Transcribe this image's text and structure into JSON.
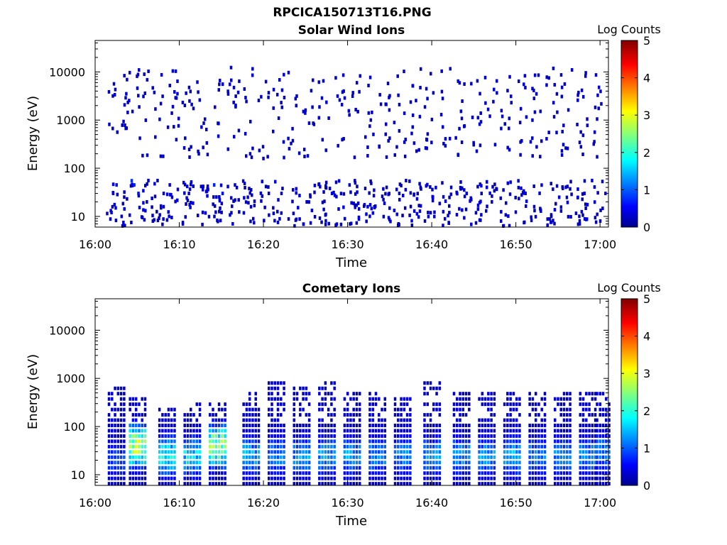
{
  "figure_title": "RPCICA150713T16.PNG",
  "colors": {
    "colormap": "jet",
    "colormap_stops": [
      "#00008f",
      "#0000ff",
      "#00ffff",
      "#ffff00",
      "#ff0000",
      "#800000"
    ]
  },
  "chart_data": [
    {
      "type": "heatmap",
      "title": "Solar Wind Ions",
      "xlabel": "Time",
      "ylabel": "Energy (eV)",
      "y_scale": "log",
      "ylim": [
        6,
        45000
      ],
      "yticks": [
        10,
        100,
        1000,
        10000
      ],
      "ytick_labels": [
        "10",
        "100",
        "1000",
        "10000"
      ],
      "xlim": [
        "16:00",
        "17:01"
      ],
      "xticks": [
        "16:00",
        "16:10",
        "16:20",
        "16:30",
        "16:40",
        "16:50",
        "17:00"
      ],
      "colorbar": {
        "label": "Log Counts",
        "min": 0,
        "max": 5,
        "ticks": [
          0,
          1,
          2,
          3,
          4,
          5
        ]
      },
      "grid": false,
      "sweep_minutes": [
        16.02,
        16.05,
        16.08,
        16.11,
        16.14,
        16.17,
        16.2,
        16.23,
        16.26,
        16.29,
        16.32,
        16.35,
        16.38,
        16.41,
        16.44,
        16.47,
        16.5,
        16.53,
        16.56,
        16.59,
        16.62,
        16.65,
        16.68,
        16.71,
        16.74,
        16.77,
        16.8,
        16.83,
        16.86,
        16.89,
        16.92,
        16.95,
        16.98
      ],
      "sweep_minutes_note": "",
      "typical_log_counts": {
        "low_energy_band_10_60eV": 0.3,
        "sparse_high_energy_1_to_15keV": 0.2
      },
      "series": [
        {
          "name": "",
          "points": [
            [
              2.0,
              30,
              0.4
            ],
            [
              2.3,
              15,
              0.5
            ],
            [
              2.4,
              45,
              0.6
            ],
            [
              3.0,
              10,
              0.4
            ],
            [
              4.2,
              55,
              0.8
            ],
            [
              4.5,
              45,
              0.7
            ],
            [
              5.0,
              30,
              0.6
            ],
            [
              6.0,
              20,
              0.4
            ],
            [
              8.0,
              30,
              0.5
            ],
            [
              9.0,
              25,
              0.4
            ],
            [
              11.0,
              30,
              0.4
            ],
            [
              14.0,
              45,
              0.7
            ],
            [
              15.0,
              30,
              0.6
            ],
            [
              18.0,
              25,
              0.4
            ],
            [
              22.0,
              30,
              0.4
            ],
            [
              25.0,
              20,
              0.3
            ],
            [
              28.0,
              30,
              0.4
            ],
            [
              33.0,
              35,
              0.4
            ],
            [
              36.0,
              30,
              0.4
            ],
            [
              40.0,
              25,
              0.5
            ],
            [
              44.0,
              30,
              0.4
            ],
            [
              47.0,
              20,
              0.4
            ],
            [
              51.0,
              30,
              0.4
            ],
            [
              55.0,
              25,
              0.4
            ],
            [
              58.0,
              30,
              0.4
            ],
            [
              60.5,
              30,
              0.5
            ]
          ]
        }
      ]
    },
    {
      "type": "heatmap",
      "title": "Cometary Ions",
      "xlabel": "Time",
      "ylabel": "Energy (eV)",
      "y_scale": "log",
      "ylim": [
        6,
        45000
      ],
      "yticks": [
        10,
        100,
        1000,
        10000
      ],
      "ytick_labels": [
        "10",
        "100",
        "1000",
        "10000"
      ],
      "xlim": [
        "16:00",
        "17:01"
      ],
      "xticks": [
        "16:00",
        "16:10",
        "16:20",
        "16:30",
        "16:40",
        "16:50",
        "17:00"
      ],
      "colorbar": {
        "label": "Log Counts",
        "min": 0,
        "max": 5,
        "ticks": [
          0,
          1,
          2,
          3,
          4,
          5
        ]
      },
      "grid": false,
      "sweep_minutes": [
        2.5,
        5.0,
        8.5,
        11.5,
        14.5,
        18.5,
        21.5,
        24.5,
        27.5,
        30.5,
        33.5,
        36.5,
        40.0,
        43.5,
        46.5,
        49.5,
        52.5,
        55.5,
        58.5,
        60.5
      ],
      "peak_log_counts": [
        0.9,
        2.8,
        1.8,
        1.6,
        2.6,
        1.4,
        1.2,
        1.3,
        1.3,
        1.3,
        1.2,
        1.2,
        1.3,
        1.3,
        1.3,
        1.4,
        1.2,
        1.2,
        1.2,
        1.2
      ],
      "peak_energy_eV": [
        20,
        40,
        25,
        25,
        40,
        25,
        25,
        25,
        25,
        25,
        25,
        25,
        25,
        25,
        25,
        25,
        25,
        25,
        25,
        30
      ],
      "max_energy_eV": [
        700,
        400,
        250,
        300,
        350,
        600,
        1000,
        700,
        900,
        600,
        500,
        450,
        900,
        600,
        550,
        600,
        500,
        500,
        500,
        500
      ]
    }
  ]
}
